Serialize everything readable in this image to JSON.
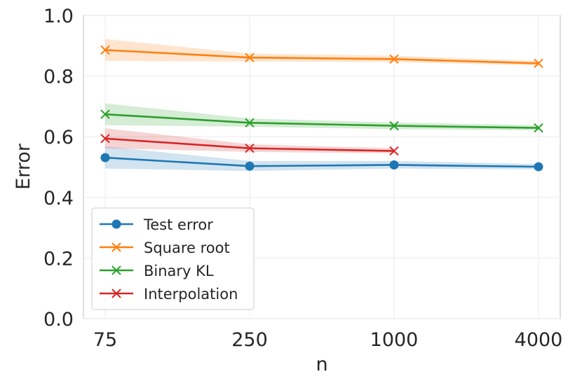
{
  "chart_data": {
    "type": "line",
    "title": "",
    "xlabel": "n",
    "ylabel": "Error",
    "categories": [
      "75",
      "250",
      "1000",
      "4000"
    ],
    "ylim": [
      0.0,
      1.0
    ],
    "yticks": [
      "0.0",
      "0.2",
      "0.4",
      "0.6",
      "0.8",
      "1.0"
    ],
    "grid": true,
    "legend_position": "lower-left",
    "series": [
      {
        "name": "Test error",
        "marker": "circle",
        "color": "#1f77b4",
        "values": [
          0.531,
          0.503,
          0.507,
          0.501
        ],
        "lower": [
          0.495,
          0.487,
          0.495,
          0.492
        ],
        "upper": [
          0.568,
          0.52,
          0.52,
          0.51
        ]
      },
      {
        "name": "Square root",
        "marker": "x",
        "color": "#ff7f0e",
        "values": [
          0.886,
          0.861,
          0.856,
          0.842
        ],
        "lower": [
          0.85,
          0.848,
          0.846,
          0.835
        ],
        "upper": [
          0.922,
          0.874,
          0.867,
          0.85
        ]
      },
      {
        "name": "Binary KL",
        "marker": "x",
        "color": "#2ca02c",
        "values": [
          0.674,
          0.646,
          0.636,
          0.629
        ],
        "lower": [
          0.638,
          0.633,
          0.625,
          0.621
        ],
        "upper": [
          0.71,
          0.66,
          0.647,
          0.638
        ]
      },
      {
        "name": "Interpolation",
        "marker": "x",
        "color": "#d62728",
        "values": [
          0.594,
          0.562,
          0.553,
          null
        ],
        "lower": [
          0.562,
          0.55,
          0.545,
          null
        ],
        "upper": [
          0.628,
          0.575,
          0.562,
          null
        ]
      }
    ]
  }
}
